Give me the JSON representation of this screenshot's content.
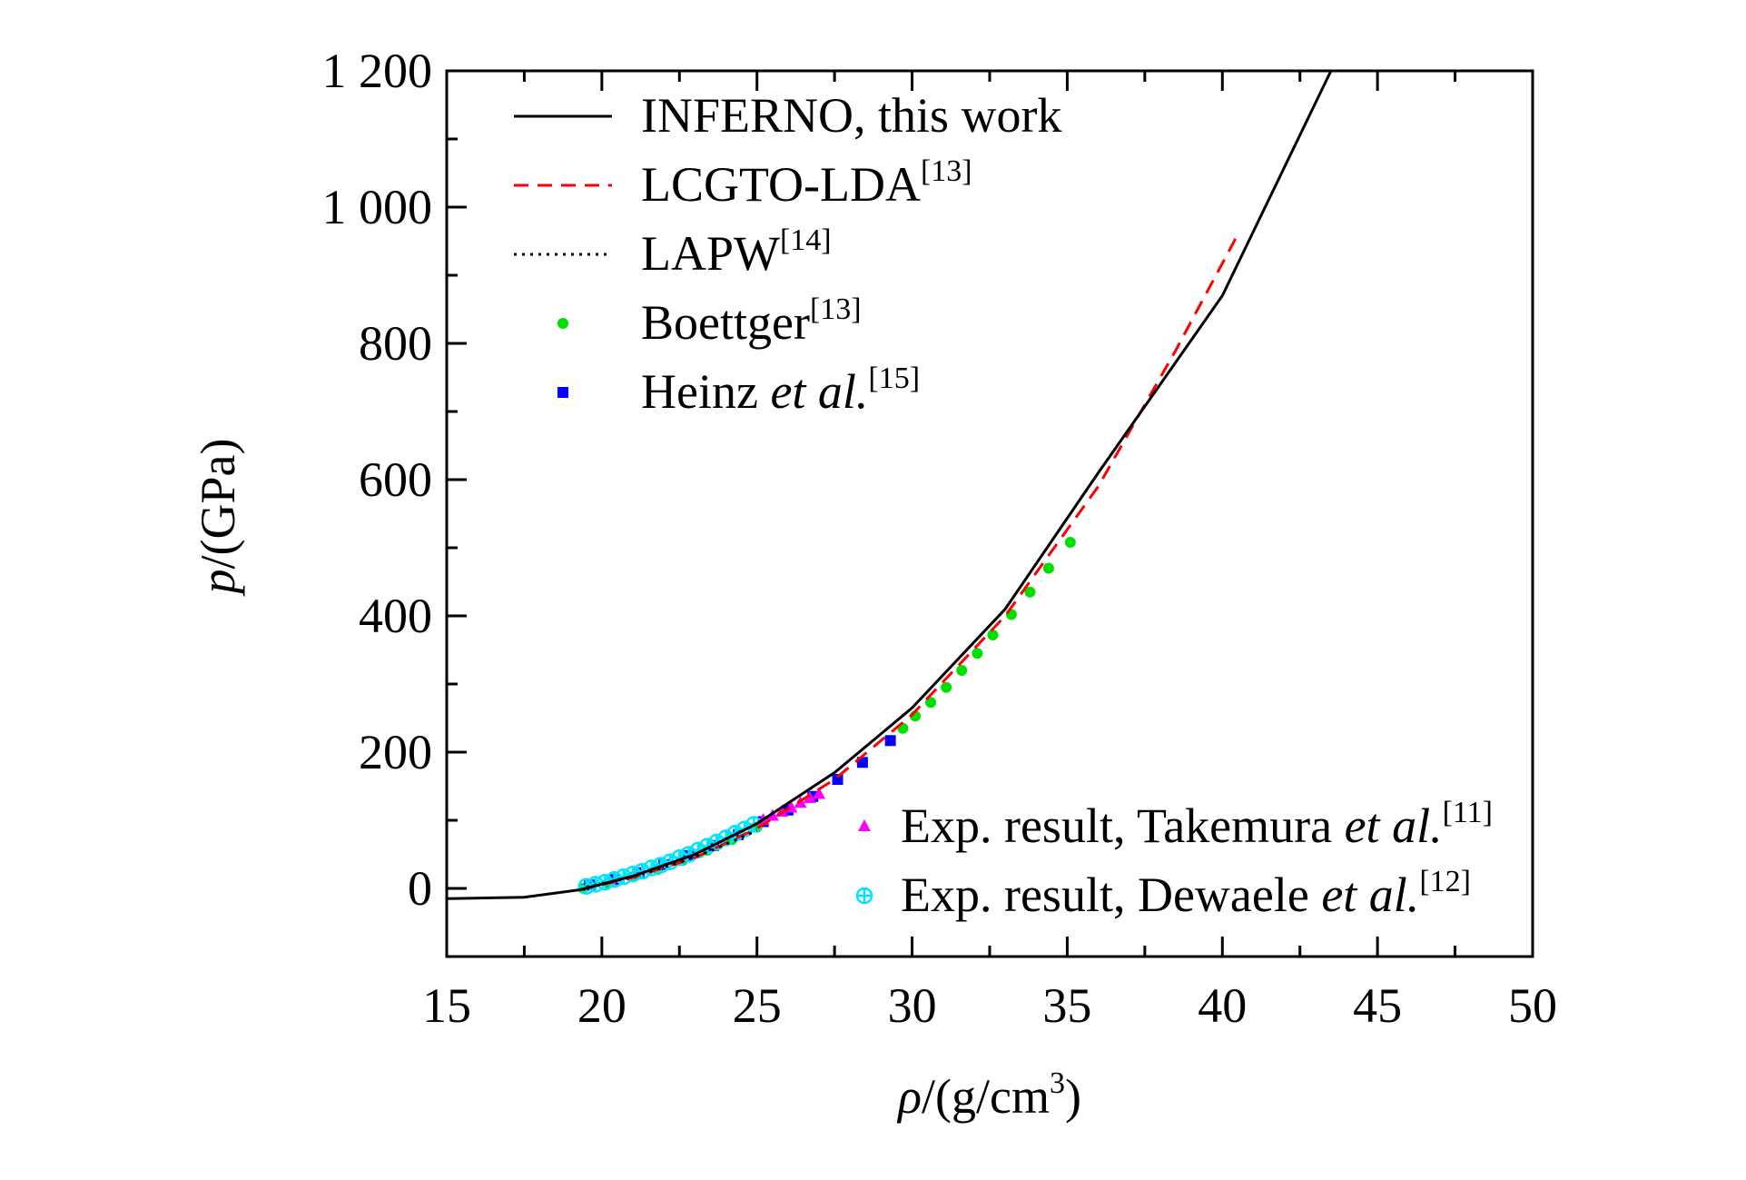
{
  "chart_data": {
    "type": "line",
    "xlabel": {
      "symbol": "ρ",
      "unit": "/(g/cm",
      "unit_sup": "3",
      "unit_close": ")"
    },
    "ylabel": {
      "symbol": "p",
      "unit": "/(GPa)"
    },
    "xlim": [
      15,
      50
    ],
    "ylim": [
      -100,
      1200
    ],
    "x_ticks": [
      15,
      20,
      25,
      30,
      35,
      40,
      45,
      50
    ],
    "x_tick_labels": [
      "15",
      "20",
      "25",
      "30",
      "35",
      "40",
      "45",
      "50"
    ],
    "y_ticks": [
      0,
      200,
      400,
      600,
      800,
      1000,
      1200
    ],
    "y_tick_labels": [
      "0",
      "200",
      "400",
      "600",
      "800",
      "1 000",
      "1 200"
    ],
    "grid": false,
    "colors": {
      "inferno": "#000000",
      "lcgto": "#ff0000",
      "lapw": "#000000",
      "boettger": "#00e000",
      "heinz": "#0000ff",
      "takemura": "#ff00ff",
      "dewaele": "#00e5ff"
    },
    "legend_upper": [
      {
        "key": "inferno",
        "marker": "solid-line",
        "text": "INFERNO, this work",
        "italic": "",
        "ref": ""
      },
      {
        "key": "lcgto",
        "marker": "dashed-line",
        "text": "LCGTO-LDA",
        "italic": "",
        "ref": "[13]"
      },
      {
        "key": "lapw",
        "marker": "dotted-line",
        "text": "LAPW",
        "italic": "",
        "ref": "[14]"
      },
      {
        "key": "boettger",
        "marker": "circle",
        "text": "Boettger",
        "italic": "",
        "ref": "[13]"
      },
      {
        "key": "heinz",
        "marker": "square",
        "text": "Heinz ",
        "italic": "et al.",
        "ref": "[15]"
      }
    ],
    "legend_lower": [
      {
        "key": "takemura",
        "marker": "triangle",
        "text": "Exp. result, Takemura ",
        "italic": "et al.",
        "ref": "[11]"
      },
      {
        "key": "dewaele",
        "marker": "crossed-circle",
        "text": "Exp. result, Dewaele ",
        "italic": "et al.",
        "ref": "[12]"
      }
    ],
    "series": [
      {
        "name": "INFERNO, this work",
        "key": "inferno",
        "style": "solid",
        "x": [
          15,
          17.5,
          19.3,
          21,
          23,
          25,
          27.5,
          30,
          33,
          36,
          40,
          43.5
        ],
        "y": [
          -15,
          -13,
          -2,
          18,
          50,
          95,
          170,
          265,
          410,
          610,
          870,
          1200
        ]
      },
      {
        "name": "LCGTO-LDA",
        "key": "lcgto",
        "style": "dashed",
        "x": [
          19.3,
          21,
          23,
          25,
          27.5,
          30,
          33,
          36,
          38.5,
          40.5
        ],
        "y": [
          -2,
          16,
          45,
          88,
          160,
          255,
          400,
          590,
          790,
          960
        ]
      },
      {
        "name": "LAPW",
        "key": "lapw",
        "style": "dotted",
        "x": [
          19.5,
          20.5,
          21.5,
          22.5,
          23.5,
          24.5,
          25
        ],
        "y": [
          2,
          12,
          24,
          38,
          55,
          75,
          85
        ]
      },
      {
        "name": "Boettger",
        "key": "boettger",
        "style": "circle",
        "x": [
          19.4,
          20.2,
          21,
          21.8,
          22.6,
          23.4,
          24.2,
          25,
          29.7,
          30.1,
          30.6,
          31.1,
          31.6,
          32.1,
          32.6,
          33.2,
          33.8,
          34.4,
          35.1
        ],
        "y": [
          0,
          8,
          17,
          28,
          41,
          56,
          72,
          90,
          235,
          253,
          273,
          295,
          320,
          345,
          372,
          402,
          435,
          470,
          508
        ]
      },
      {
        "name": "Heinz et al.",
        "key": "heinz",
        "style": "square",
        "x": [
          19.6,
          20.4,
          21.2,
          22,
          22.8,
          23.6,
          24.4,
          25.2,
          26,
          26.8,
          27.6,
          28.4,
          29.3
        ],
        "y": [
          5,
          13,
          23,
          35,
          48,
          63,
          79,
          98,
          115,
          135,
          160,
          185,
          217
        ]
      },
      {
        "name": "Exp. result, Takemura et al.",
        "key": "takemura",
        "style": "triangle",
        "x": [
          25.2,
          25.5,
          25.8,
          26.1,
          26.4,
          26.7,
          27
        ],
        "y": [
          100,
          106,
          112,
          118,
          125,
          132,
          138
        ]
      },
      {
        "name": "Exp. result, Dewaele et al.",
        "key": "dewaele",
        "style": "crossed-circle",
        "x": [
          19.5,
          19.8,
          20.1,
          20.4,
          20.7,
          21,
          21.3,
          21.6,
          21.9,
          22.2,
          22.5,
          22.8,
          23.1,
          23.4,
          23.7,
          24,
          24.3,
          24.6,
          24.9
        ],
        "y": [
          3,
          6,
          9,
          13,
          17,
          21,
          25,
          30,
          34,
          39,
          45,
          50,
          56,
          62,
          68,
          74,
          81,
          87,
          94
        ]
      }
    ]
  }
}
